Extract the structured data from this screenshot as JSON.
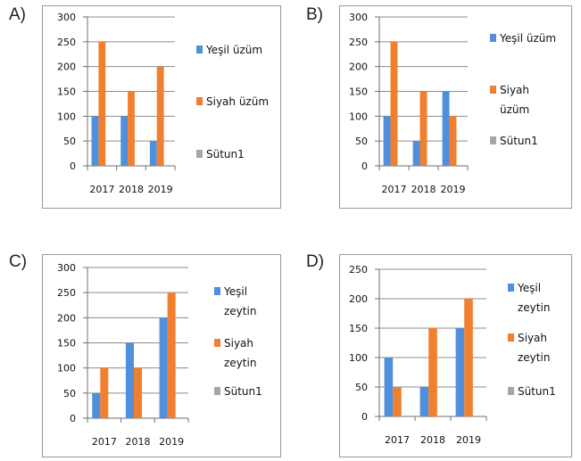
{
  "panels": [
    "A)",
    "B)",
    "C)",
    "D)"
  ],
  "colors": {
    "series1": "#4f8fdb",
    "series2": "#f07f2f",
    "series3": "#a6a6a6"
  },
  "chart_data": [
    {
      "label": "A)",
      "type": "bar",
      "categories": [
        "2017",
        "2018",
        "2019"
      ],
      "yticks": [
        "0",
        "50",
        "100",
        "150",
        "200",
        "250",
        "300"
      ],
      "ylim": [
        0,
        300
      ],
      "grid": true,
      "legend_position": "right",
      "series": [
        {
          "name": "Yeşil üzüm",
          "legend_lines": [
            "Yeşil üzüm"
          ],
          "values": [
            100,
            100,
            50
          ]
        },
        {
          "name": "Siyah üzüm",
          "legend_lines": [
            "Siyah üzüm"
          ],
          "values": [
            250,
            150,
            200
          ]
        },
        {
          "name": "Sütun1",
          "legend_lines": [
            "Sütun1"
          ],
          "values": [
            0,
            0,
            0
          ]
        }
      ]
    },
    {
      "label": "B)",
      "type": "bar",
      "categories": [
        "2017",
        "2018",
        "2019"
      ],
      "yticks": [
        "0",
        "50",
        "100",
        "150",
        "200",
        "250",
        "300"
      ],
      "ylim": [
        0,
        300
      ],
      "grid": true,
      "legend_position": "right",
      "series": [
        {
          "name": "Yeşil üzüm",
          "legend_lines": [
            "Yeşil üzüm"
          ],
          "values": [
            100,
            50,
            150
          ]
        },
        {
          "name": "Siyah üzüm",
          "legend_lines": [
            "Siyah",
            "üzüm"
          ],
          "values": [
            250,
            150,
            100
          ]
        },
        {
          "name": "Sütun1",
          "legend_lines": [
            "Sütun1"
          ],
          "values": [
            0,
            0,
            0
          ]
        }
      ]
    },
    {
      "label": "C)",
      "type": "bar",
      "categories": [
        "2017",
        "2018",
        "2019"
      ],
      "yticks": [
        "0",
        "50",
        "100",
        "150",
        "200",
        "250",
        "300"
      ],
      "ylim": [
        0,
        300
      ],
      "grid": true,
      "legend_position": "right",
      "series": [
        {
          "name": "Yeşil zeytin",
          "legend_lines": [
            "Yeşil",
            "zeytin"
          ],
          "values": [
            50,
            150,
            200
          ]
        },
        {
          "name": "Siyah zeytin",
          "legend_lines": [
            "Siyah",
            "zeytin"
          ],
          "values": [
            100,
            100,
            250
          ]
        },
        {
          "name": "Sütun1",
          "legend_lines": [
            "Sütun1"
          ],
          "values": [
            0,
            0,
            0
          ]
        }
      ]
    },
    {
      "label": "D)",
      "type": "bar",
      "categories": [
        "2017",
        "2018",
        "2019"
      ],
      "yticks": [
        "0",
        "50",
        "100",
        "150",
        "200",
        "250"
      ],
      "ylim": [
        0,
        250
      ],
      "grid": true,
      "legend_position": "right",
      "series": [
        {
          "name": "Yeşil zeytin",
          "legend_lines": [
            "Yeşil",
            "zeytin"
          ],
          "values": [
            100,
            50,
            150
          ]
        },
        {
          "name": "Siyah zeytin",
          "legend_lines": [
            "Siyah",
            "zeytin"
          ],
          "values": [
            50,
            150,
            200
          ]
        },
        {
          "name": "Sütun1",
          "legend_lines": [
            "Sütun1"
          ],
          "values": [
            0,
            0,
            0
          ]
        }
      ]
    }
  ]
}
